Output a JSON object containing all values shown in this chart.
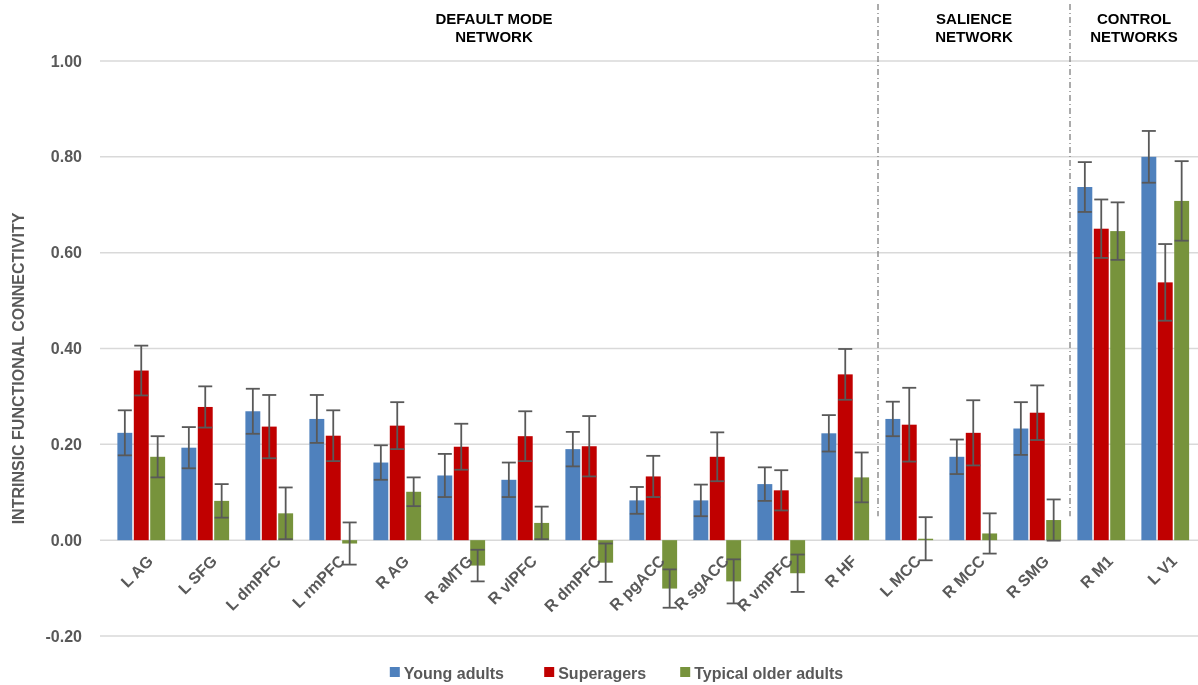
{
  "chart_data": {
    "type": "bar",
    "ylabel": "INTRINSIC FUNCTIONAL CONNECTIVITY",
    "categories": [
      "L AG",
      "L SFG",
      "L dmPFC",
      "L rmPFC",
      "R AG",
      "R aMTG",
      "R vlPFC",
      "R dmPFC",
      "R pgACC",
      "R sgACC",
      "R vmPFC",
      "R HF",
      "L MCC",
      "R MCC",
      "R SMG",
      "R M1",
      "L V1"
    ],
    "series": [
      {
        "name": "Young adults",
        "color": "#4f81bd",
        "values": [
          0.224,
          0.193,
          0.269,
          0.253,
          0.162,
          0.135,
          0.126,
          0.19,
          0.083,
          0.083,
          0.117,
          0.223,
          0.253,
          0.174,
          0.233,
          0.737,
          0.8
        ],
        "errors": [
          0.047,
          0.043,
          0.047,
          0.05,
          0.036,
          0.045,
          0.036,
          0.036,
          0.028,
          0.033,
          0.035,
          0.038,
          0.036,
          0.036,
          0.055,
          0.052,
          0.054
        ]
      },
      {
        "name": "Superagers",
        "color": "#c00000",
        "values": [
          0.354,
          0.278,
          0.237,
          0.218,
          0.239,
          0.195,
          0.217,
          0.196,
          0.133,
          0.174,
          0.104,
          0.346,
          0.241,
          0.224,
          0.266,
          0.65,
          0.538
        ],
        "errors": [
          0.052,
          0.043,
          0.066,
          0.053,
          0.049,
          0.048,
          0.052,
          0.063,
          0.043,
          0.051,
          0.042,
          0.053,
          0.077,
          0.068,
          0.057,
          0.061,
          0.08
        ]
      },
      {
        "name": "Typical older adults",
        "color": "#77933c",
        "values": [
          0.174,
          0.082,
          0.056,
          -0.007,
          0.101,
          -0.053,
          0.036,
          -0.047,
          -0.101,
          -0.086,
          -0.069,
          0.131,
          0.003,
          0.014,
          0.042,
          0.645,
          0.708
        ],
        "errors": [
          0.043,
          0.035,
          0.054,
          0.044,
          0.03,
          0.033,
          0.034,
          0.04,
          0.04,
          0.046,
          0.039,
          0.052,
          0.045,
          0.042,
          0.043,
          0.06,
          0.083
        ]
      }
    ],
    "ylim": [
      -0.2,
      1.0
    ],
    "yticks": [
      {
        "value": -0.2,
        "label": "-0.20"
      },
      {
        "value": 0,
        "label": "0.00"
      },
      {
        "value": 0.2,
        "label": "0.20"
      },
      {
        "value": 0.4,
        "label": "0.40"
      },
      {
        "value": 0.6,
        "label": "0.60"
      },
      {
        "value": 0.8,
        "label": "0.80"
      },
      {
        "value": 1.0,
        "label": "1.00"
      }
    ],
    "grid": "y",
    "legend": "bottom",
    "ref_lines": [
      {
        "axis": "x",
        "value": "L MCC",
        "color": "#7f7f7f",
        "line_style": "dashed"
      },
      {
        "axis": "x",
        "value": "R M1",
        "color": "#7f7f7f",
        "line_style": "dashed"
      }
    ],
    "annotations": [
      "DEFAULT MODE NETWORK",
      "SALIENCE NETWORK",
      "CONTROL NETWORKS"
    ]
  }
}
